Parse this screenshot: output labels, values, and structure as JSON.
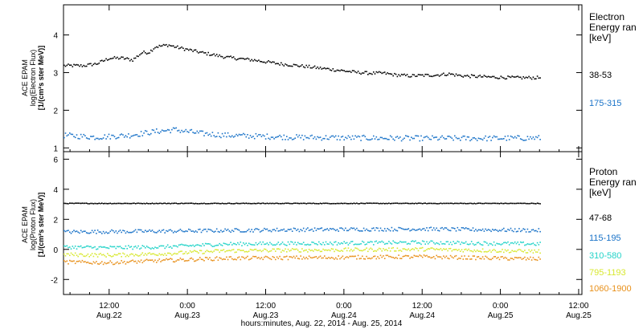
{
  "colors": {
    "black": "#000000",
    "blue": "#1a73c8",
    "cyan": "#22d3c8",
    "yellow": "#d8e830",
    "orange": "#e8901a"
  },
  "x_axis": {
    "label": "hours:minutes, Aug. 22, 2014 - Aug. 25, 2014",
    "ticks": [
      {
        "t": 12,
        "time": "12:00",
        "date": "Aug.22"
      },
      {
        "t": 24,
        "time": "0:00",
        "date": "Aug.23"
      },
      {
        "t": 36,
        "time": "12:00",
        "date": "Aug.23"
      },
      {
        "t": 48,
        "time": "0:00",
        "date": "Aug.24"
      },
      {
        "t": 60,
        "time": "12:00",
        "date": "Aug.24"
      },
      {
        "t": 72,
        "time": "0:00",
        "date": "Aug.25"
      },
      {
        "t": 84,
        "time": "12:00",
        "date": "Aug.25"
      }
    ]
  },
  "chart_data": [
    {
      "type": "scatter",
      "ylabel": [
        "ACE EPAM",
        "log(Electron Flux)",
        "[1/(cm²s ster MeV)]"
      ],
      "ylim": [
        0.9,
        4.8
      ],
      "xlim_hours": [
        5,
        84.5
      ],
      "yticks": [
        1,
        2,
        3,
        4
      ],
      "legend": {
        "title": [
          "Electron",
          "Energy ran",
          "[keV]"
        ]
      },
      "series": [
        {
          "name": "38-53",
          "color_key": "black",
          "points": [
            [
              5,
              3.2
            ],
            [
              8,
              3.2
            ],
            [
              10,
              3.25
            ],
            [
              12,
              3.4
            ],
            [
              14,
              3.4
            ],
            [
              15.5,
              3.35
            ],
            [
              17,
              3.55
            ],
            [
              18,
              3.55
            ],
            [
              19,
              3.7
            ],
            [
              21,
              3.75
            ],
            [
              22,
              3.7
            ],
            [
              26,
              3.55
            ],
            [
              30,
              3.42
            ],
            [
              34,
              3.35
            ],
            [
              38,
              3.25
            ],
            [
              42,
              3.18
            ],
            [
              46,
              3.1
            ],
            [
              50,
              3.02
            ],
            [
              52,
              3.0
            ],
            [
              54,
              3.0
            ],
            [
              56,
              2.95
            ],
            [
              58,
              2.93
            ],
            [
              62,
              2.95
            ],
            [
              64,
              2.98
            ],
            [
              66,
              2.93
            ],
            [
              70,
              2.9
            ],
            [
              74,
              2.88
            ],
            [
              78,
              2.88
            ]
          ]
        },
        {
          "name": "175-315",
          "color_key": "blue",
          "points": [
            [
              5,
              1.35
            ],
            [
              10,
              1.3
            ],
            [
              15,
              1.35
            ],
            [
              19,
              1.45
            ],
            [
              22,
              1.5
            ],
            [
              26,
              1.4
            ],
            [
              30,
              1.35
            ],
            [
              40,
              1.3
            ],
            [
              50,
              1.28
            ],
            [
              60,
              1.27
            ],
            [
              70,
              1.27
            ],
            [
              78,
              1.28
            ]
          ]
        }
      ]
    },
    {
      "type": "scatter",
      "ylabel": [
        "ACE EPAM",
        "log(Proton Flux)",
        "[1/(cm²s ster MeV)]"
      ],
      "ylim": [
        -3,
        6.5
      ],
      "xlim_hours": [
        5,
        84.5
      ],
      "yticks": [
        -2,
        0,
        2,
        4,
        6
      ],
      "legend": {
        "title": [
          "Proton",
          "Energy ran",
          "[keV]"
        ]
      },
      "series": [
        {
          "name": "47-68",
          "color_key": "black",
          "points": [
            [
              5,
              3.1
            ],
            [
              20,
              3.1
            ],
            [
              40,
              3.1
            ],
            [
              60,
              3.1
            ],
            [
              78,
              3.1
            ]
          ]
        },
        {
          "name": "115-195",
          "color_key": "blue",
          "points": [
            [
              5,
              1.2
            ],
            [
              20,
              1.25
            ],
            [
              40,
              1.35
            ],
            [
              60,
              1.4
            ],
            [
              78,
              1.3
            ]
          ]
        },
        {
          "name": "310-580",
          "color_key": "cyan",
          "points": [
            [
              5,
              0.2
            ],
            [
              12,
              0.15
            ],
            [
              20,
              0.2
            ],
            [
              30,
              0.4
            ],
            [
              45,
              0.45
            ],
            [
              60,
              0.5
            ],
            [
              78,
              0.4
            ]
          ]
        },
        {
          "name": "795-1193",
          "color_key": "yellow",
          "points": [
            [
              5,
              -0.3
            ],
            [
              12,
              -0.35
            ],
            [
              20,
              -0.25
            ],
            [
              30,
              -0.05
            ],
            [
              45,
              0.0
            ],
            [
              60,
              0.05
            ],
            [
              78,
              -0.1
            ]
          ]
        },
        {
          "name": "1060-1900",
          "color_key": "orange",
          "points": [
            [
              5,
              -0.8
            ],
            [
              12,
              -0.85
            ],
            [
              20,
              -0.7
            ],
            [
              30,
              -0.55
            ],
            [
              45,
              -0.5
            ],
            [
              60,
              -0.45
            ],
            [
              78,
              -0.6
            ]
          ]
        }
      ]
    }
  ]
}
